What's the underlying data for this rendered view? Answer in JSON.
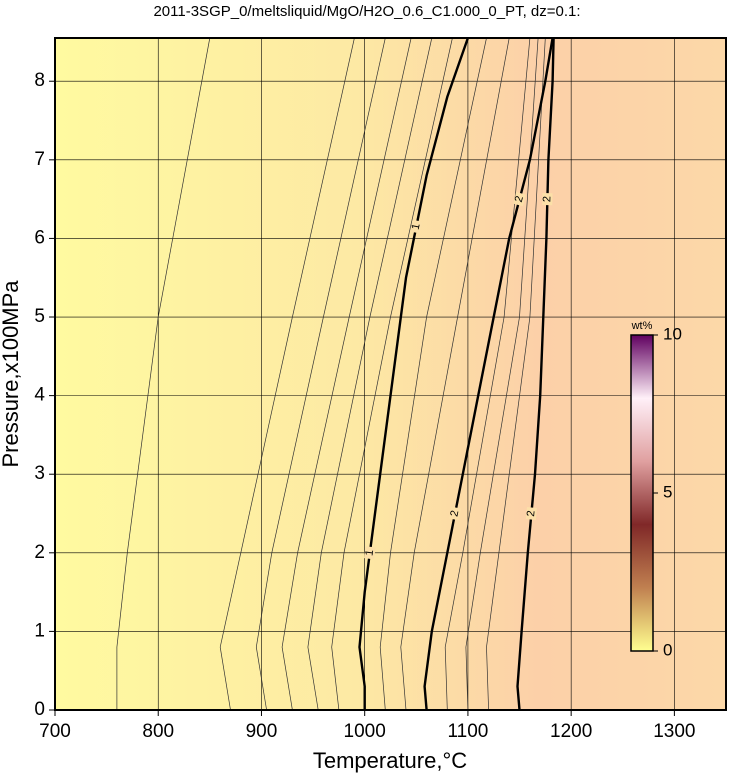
{
  "chart_data": {
    "type": "contour",
    "title": "2011-3SGP_0/meltsliquid/MgO/H2O_0.6_C1.000_0_PT, dz=0.1:",
    "x_label": "Temperature,°C",
    "y_label": "Pressure,x100MPa",
    "xlim": [
      700,
      1350
    ],
    "ylim": [
      0,
      8.55
    ],
    "xticks": [
      700,
      800,
      900,
      1000,
      1100,
      1200,
      1300
    ],
    "yticks": [
      0,
      1,
      2,
      3,
      4,
      5,
      6,
      7,
      8
    ],
    "grid": true,
    "contours": [
      {
        "label": "1",
        "x": [
          1000,
          1000,
          995,
          1000,
          1010,
          1025,
          1040,
          1060,
          1080,
          1100
        ],
        "y": [
          0,
          0.3,
          0.8,
          1.5,
          2.5,
          4,
          5.5,
          6.8,
          7.8,
          8.55
        ]
      },
      {
        "label": "2",
        "x": [
          1060,
          1058,
          1065,
          1080,
          1095,
          1110,
          1125,
          1140,
          1160,
          1175,
          1182
        ],
        "y": [
          0,
          0.3,
          1,
          2,
          3,
          4,
          5,
          6,
          7,
          8,
          8.55
        ]
      },
      {
        "label": "2",
        "x": [
          1150,
          1148,
          1152,
          1158,
          1165,
          1170,
          1173,
          1176,
          1178,
          1182,
          1183
        ],
        "y": [
          0,
          0.3,
          1,
          2,
          3,
          4,
          5,
          6,
          7,
          8,
          8.55
        ]
      }
    ],
    "thin_contours": [
      {
        "x": [
          760,
          760,
          770,
          800,
          850
        ],
        "y": [
          0,
          0.8,
          2,
          5,
          8.55
        ]
      },
      {
        "x": [
          870,
          860,
          880,
          930,
          990
        ],
        "y": [
          0,
          0.8,
          2,
          5,
          8.55
        ]
      },
      {
        "x": [
          905,
          895,
          910,
          960,
          1020
        ],
        "y": [
          0,
          0.8,
          2,
          5,
          8.55
        ]
      },
      {
        "x": [
          930,
          920,
          935,
          985,
          1045
        ],
        "y": [
          0,
          0.8,
          2,
          5,
          8.55
        ]
      },
      {
        "x": [
          955,
          945,
          958,
          1005,
          1065
        ],
        "y": [
          0,
          0.8,
          2,
          5,
          8.55
        ]
      },
      {
        "x": [
          975,
          968,
          980,
          1025,
          1085
        ],
        "y": [
          0,
          0.8,
          2,
          5,
          8.55
        ]
      },
      {
        "x": [
          1020,
          1015,
          1025,
          1060,
          1118
        ],
        "y": [
          0,
          0.8,
          2,
          5,
          8.55
        ]
      },
      {
        "x": [
          1040,
          1035,
          1048,
          1090,
          1140
        ],
        "y": [
          0,
          0.8,
          2,
          5,
          8.55
        ]
      },
      {
        "x": [
          1080,
          1078,
          1095,
          1135,
          1160
        ],
        "y": [
          0,
          0.8,
          2,
          5,
          8.55
        ]
      },
      {
        "x": [
          1100,
          1098,
          1112,
          1150,
          1168
        ],
        "y": [
          0,
          0.8,
          2,
          5,
          8.55
        ]
      },
      {
        "x": [
          1120,
          1118,
          1130,
          1160,
          1175
        ],
        "y": [
          0,
          0.8,
          2,
          5,
          8.55
        ]
      }
    ],
    "colorbar": {
      "label": "wt%",
      "lim": [
        0,
        10
      ],
      "ticks": [
        0,
        5,
        10
      ],
      "colors": [
        "#ffff90",
        "#c08050",
        "#802828",
        "#e0a0a0",
        "#fff0f8",
        "#600060"
      ]
    }
  }
}
